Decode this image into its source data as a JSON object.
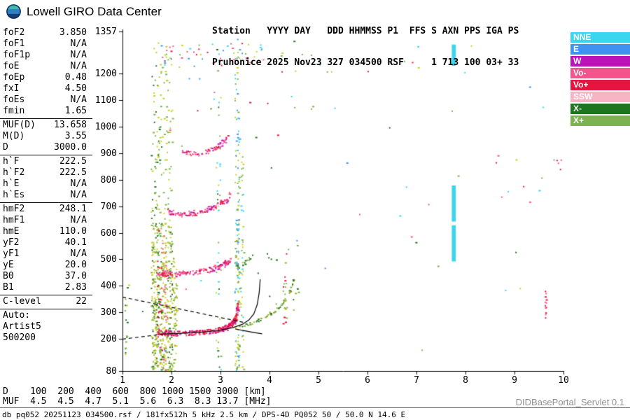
{
  "header": {
    "logo_text": "Lowell GIRO Data Center",
    "station_line1": "Station   YYYY DAY   DDD HHMMSS P1  FFS S AXN PPS IGA PS",
    "station_line2": "Pruhonice 2025 Nov23 327 034500 RSF     1 713 100 03+ 33"
  },
  "params": {
    "groups": [
      {
        "rows": [
          [
            "foF2",
            "3.850"
          ],
          [
            "foF1",
            "N/A"
          ],
          [
            "foF1p",
            "N/A"
          ],
          [
            "foE",
            "N/A"
          ],
          [
            "foEp",
            "0.48"
          ],
          [
            "fxI",
            "4.50"
          ],
          [
            "foEs",
            "N/A"
          ],
          [
            "fmin",
            "1.65"
          ]
        ]
      },
      {
        "rows": [
          [
            "MUF(D)",
            "13.658"
          ],
          [
            "M(D)",
            "3.55"
          ],
          [
            "D",
            "3000.0"
          ]
        ]
      },
      {
        "rows": [
          [
            "h`F",
            "222.5"
          ],
          [
            "h`F2",
            "222.5"
          ],
          [
            "h`E",
            "N/A"
          ],
          [
            "h`Es",
            "N/A"
          ]
        ]
      },
      {
        "rows": [
          [
            "hmF2",
            "248.1"
          ],
          [
            "hmF1",
            "N/A"
          ],
          [
            "hmE",
            "110.0"
          ],
          [
            "yF2",
            "40.1"
          ],
          [
            "yF1",
            "N/A"
          ],
          [
            "yE",
            "20.0"
          ],
          [
            "B0",
            "37.0"
          ],
          [
            "B1",
            "2.83"
          ]
        ]
      },
      {
        "rows": [
          [
            "C-level",
            "22"
          ]
        ]
      },
      {
        "rows": [
          [
            "Auto:",
            ""
          ],
          [
            "Artist5",
            ""
          ],
          [
            "500200",
            ""
          ]
        ]
      }
    ]
  },
  "legend": [
    {
      "label": "NNE",
      "color": "#3ad6f0"
    },
    {
      "label": "E",
      "color": "#3e93f0"
    },
    {
      "label": "W",
      "color": "#b913b9"
    },
    {
      "label": "Vo-",
      "color": "#f4538b"
    },
    {
      "label": "Vo+",
      "color": "#e5153f"
    },
    {
      "label": "SSW",
      "color": "#f9b4c4"
    },
    {
      "label": "X-",
      "color": "#1d751d"
    },
    {
      "label": "X+",
      "color": "#7cb350"
    }
  ],
  "footer": {
    "d_row": "D    100  200  400  600  800 1000 1500 3000 [km]",
    "muf_row": "MUF  4.5  4.5  4.7  5.1  5.6  6.3  8.3 13.7 [MHz]",
    "servlet": "DIDBasePortal_Servlet 0.1",
    "status": "db pq052 20251123 034500.rsf / 181fx512h 5 kHz 2.5 km / DPS-4D PQ052 50 / 50.0 N 14.6 E"
  },
  "chart_data": {
    "type": "scatter",
    "x_unit": "MHz",
    "y_unit": "km",
    "xlim": [
      1,
      10
    ],
    "ylim": [
      80,
      1357
    ],
    "x_ticks": [
      1,
      2,
      3,
      4,
      5,
      6,
      7,
      8,
      9,
      10
    ],
    "y_ticks": [
      1357,
      1200,
      1100,
      1000,
      900,
      800,
      700,
      600,
      500,
      400,
      300,
      200,
      80
    ],
    "seed": 1337,
    "palette": {
      "cyan": "#3ad6f0",
      "blue": "#3e93f0",
      "magenta": "#b913b9",
      "pink": "#f4538b",
      "red": "#e5153f",
      "ltpink": "#f9b4c4",
      "dkgreen": "#1d751d",
      "green": "#7cb350",
      "yellow": "#c9cf2c",
      "olive": "#9fae26"
    },
    "layers": [
      {
        "type": "column",
        "f": 1.08,
        "fw": 0.05,
        "h0": 80,
        "h1": 420,
        "n": 16,
        "colors": [
          "green",
          "dkgreen",
          "yellow"
        ]
      },
      {
        "type": "column",
        "f": 1.63,
        "fw": 0.055,
        "h0": 80,
        "h1": 640,
        "n": 130,
        "colors": [
          "yellow",
          "olive",
          "green",
          "dkgreen",
          "yellow"
        ]
      },
      {
        "type": "column",
        "f": 1.63,
        "fw": 0.055,
        "h0": 640,
        "h1": 1330,
        "n": 34,
        "colors": [
          "yellow",
          "green",
          "dkgreen"
        ]
      },
      {
        "type": "column",
        "f": 1.74,
        "fw": 0.055,
        "h0": 80,
        "h1": 640,
        "n": 140,
        "colors": [
          "yellow",
          "olive",
          "green",
          "dkgreen",
          "red"
        ]
      },
      {
        "type": "column",
        "f": 1.74,
        "fw": 0.055,
        "h0": 640,
        "h1": 1330,
        "n": 38,
        "colors": [
          "yellow",
          "green",
          "dkgreen"
        ]
      },
      {
        "type": "column",
        "f": 1.85,
        "fw": 0.055,
        "h0": 80,
        "h1": 640,
        "n": 120,
        "colors": [
          "yellow",
          "olive",
          "green",
          "pink",
          "yellow"
        ]
      },
      {
        "type": "column",
        "f": 1.85,
        "fw": 0.055,
        "h0": 640,
        "h1": 1330,
        "n": 28,
        "colors": [
          "yellow",
          "green"
        ]
      },
      {
        "type": "column",
        "f": 1.96,
        "fw": 0.05,
        "h0": 80,
        "h1": 640,
        "n": 115,
        "colors": [
          "yellow",
          "olive",
          "green",
          "dkgreen"
        ]
      },
      {
        "type": "column",
        "f": 1.96,
        "fw": 0.05,
        "h0": 640,
        "h1": 1330,
        "n": 26,
        "colors": [
          "green",
          "yellow"
        ]
      },
      {
        "type": "column",
        "f": 2.06,
        "fw": 0.045,
        "h0": 80,
        "h1": 520,
        "n": 55,
        "colors": [
          "yellow",
          "green",
          "olive"
        ]
      },
      {
        "type": "column",
        "f": 2.95,
        "fw": 0.05,
        "h0": 80,
        "h1": 1330,
        "n": 40,
        "colors": [
          "yellow",
          "green",
          "cyan",
          "dkgreen"
        ]
      },
      {
        "type": "column",
        "f": 3.33,
        "fw": 0.05,
        "h0": 80,
        "h1": 640,
        "n": 105,
        "colors": [
          "yellow",
          "green",
          "cyan",
          "blue",
          "olive"
        ]
      },
      {
        "type": "column",
        "f": 3.33,
        "fw": 0.05,
        "h0": 640,
        "h1": 1330,
        "n": 55,
        "colors": [
          "yellow",
          "green",
          "cyan",
          "blue"
        ]
      },
      {
        "type": "column",
        "f": 3.43,
        "fw": 0.035,
        "h0": 80,
        "h1": 900,
        "n": 40,
        "colors": [
          "green",
          "yellow",
          "cyan"
        ]
      },
      {
        "type": "column",
        "f": 4.3,
        "fw": 0.035,
        "h0": 260,
        "h1": 560,
        "n": 20,
        "colors": [
          "green",
          "red",
          "olive"
        ]
      },
      {
        "type": "trace",
        "points": [
          [
            1.68,
            228
          ],
          [
            2.0,
            223
          ],
          [
            2.3,
            224
          ],
          [
            2.6,
            228
          ],
          [
            2.85,
            233
          ],
          [
            3.05,
            242
          ],
          [
            3.2,
            255
          ],
          [
            3.3,
            280
          ],
          [
            3.36,
            330
          ]
        ],
        "n": 270,
        "sh": 9,
        "sf": 0.025,
        "colors": [
          "red",
          "red",
          "red",
          "pink",
          "magenta"
        ]
      },
      {
        "type": "trace",
        "points": [
          [
            3.45,
            250
          ],
          [
            3.65,
            262
          ],
          [
            3.85,
            280
          ],
          [
            4.05,
            302
          ],
          [
            4.25,
            335
          ],
          [
            4.4,
            380
          ],
          [
            4.5,
            430
          ]
        ],
        "n": 55,
        "sh": 6,
        "sf": 0.02,
        "colors": [
          "dkgreen",
          "green",
          "olive"
        ]
      },
      {
        "type": "trace",
        "points": [
          [
            1.7,
            452
          ],
          [
            2.0,
            446
          ],
          [
            2.3,
            449
          ],
          [
            2.6,
            456
          ],
          [
            2.85,
            468
          ],
          [
            3.05,
            482
          ],
          [
            3.2,
            502
          ]
        ],
        "n": 150,
        "sh": 10,
        "sf": 0.025,
        "colors": [
          "red",
          "pink",
          "pink",
          "magenta"
        ]
      },
      {
        "type": "trace",
        "points": [
          [
            3.3,
            470
          ],
          [
            3.5,
            492
          ],
          [
            3.68,
            520
          ]
        ],
        "n": 14,
        "sh": 8,
        "sf": 0.02,
        "colors": [
          "green",
          "dkgreen"
        ]
      },
      {
        "type": "trace",
        "points": [
          [
            1.9,
            682
          ],
          [
            2.15,
            672
          ],
          [
            2.4,
            675
          ],
          [
            2.65,
            685
          ],
          [
            2.9,
            702
          ],
          [
            3.1,
            725
          ],
          [
            3.2,
            748
          ]
        ],
        "n": 110,
        "sh": 10,
        "sf": 0.025,
        "colors": [
          "pink",
          "red",
          "magenta",
          "pink"
        ]
      },
      {
        "type": "trace",
        "points": [
          [
            2.2,
            910
          ],
          [
            2.45,
            898
          ],
          [
            2.7,
            905
          ],
          [
            2.9,
            922
          ],
          [
            3.05,
            945
          ],
          [
            3.15,
            965
          ]
        ],
        "n": 60,
        "sh": 9,
        "sf": 0.025,
        "colors": [
          "pink",
          "red",
          "magenta"
        ]
      },
      {
        "type": "cluster",
        "f0": 1.75,
        "f1": 3.9,
        "h0": 1225,
        "h1": 1315,
        "n": 55,
        "colors": [
          "green",
          "yellow",
          "cyan",
          "red",
          "blue",
          "pink"
        ]
      },
      {
        "type": "cluster",
        "f0": 4.0,
        "f1": 8.2,
        "h0": 1200,
        "h1": 1305,
        "n": 16,
        "colors": [
          "green",
          "cyan",
          "red",
          "yellow"
        ]
      },
      {
        "type": "cluster",
        "f0": 2.6,
        "f1": 5.9,
        "h0": 1060,
        "h1": 1125,
        "n": 10,
        "colors": [
          "green",
          "red",
          "yellow",
          "cyan"
        ]
      },
      {
        "type": "rect",
        "f0": 7.72,
        "f1": 7.8,
        "h0": 492,
        "h1": 628,
        "color": "cyan"
      },
      {
        "type": "rect",
        "f0": 7.72,
        "f1": 7.8,
        "h0": 642,
        "h1": 778,
        "color": "cyan"
      },
      {
        "type": "rect",
        "f0": 7.72,
        "f1": 7.8,
        "h0": 1228,
        "h1": 1308,
        "color": "cyan"
      },
      {
        "type": "column",
        "f": 9.62,
        "fw": 0.025,
        "h0": 280,
        "h1": 385,
        "n": 13,
        "colors": [
          "red",
          "pink"
        ]
      },
      {
        "type": "cluster",
        "f0": 9.85,
        "f1": 9.95,
        "h0": 840,
        "h1": 885,
        "n": 4,
        "colors": [
          "pink",
          "red"
        ]
      },
      {
        "type": "cluster",
        "f0": 8.4,
        "f1": 9.9,
        "h0": 600,
        "h1": 900,
        "n": 8,
        "colors": [
          "pink",
          "red",
          "green",
          "cyan"
        ]
      },
      {
        "type": "cluster",
        "f0": 3.6,
        "f1": 4.6,
        "h0": 300,
        "h1": 560,
        "n": 16,
        "colors": [
          "green",
          "olive",
          "dkgreen"
        ]
      },
      {
        "type": "cluster",
        "f0": 1.1,
        "f1": 9.9,
        "h0": 80,
        "h1": 1340,
        "n": 40,
        "colors": [
          "green",
          "yellow",
          "red",
          "cyan",
          "blue",
          "pink",
          "dkgreen"
        ]
      }
    ],
    "curves": [
      {
        "dash": [
          5,
          4
        ],
        "points": [
          [
            1.0,
            358
          ],
          [
            3.5,
            262
          ]
        ]
      },
      {
        "dash": [
          5,
          4
        ],
        "points": [
          [
            1.0,
            200
          ],
          [
            1.85,
            219
          ]
        ]
      },
      {
        "dash": null,
        "points": [
          [
            1.85,
            219
          ],
          [
            2.2,
            222
          ],
          [
            2.6,
            226
          ],
          [
            2.95,
            232
          ],
          [
            3.25,
            243
          ],
          [
            3.45,
            256
          ],
          [
            3.58,
            272
          ],
          [
            3.68,
            295
          ],
          [
            3.75,
            330
          ],
          [
            3.79,
            375
          ],
          [
            3.81,
            425
          ]
        ]
      },
      {
        "dash": null,
        "points": [
          [
            3.3,
            238
          ],
          [
            3.5,
            231
          ],
          [
            3.65,
            226
          ],
          [
            3.78,
            222
          ],
          [
            3.85,
            220
          ]
        ]
      }
    ]
  }
}
